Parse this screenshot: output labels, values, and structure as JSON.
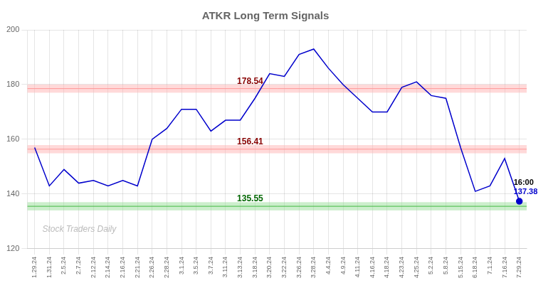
{
  "chart_data": {
    "type": "line",
    "title": "ATKR Long Term Signals",
    "categories": [
      "1.29.24",
      "1.31.24",
      "2.5.24",
      "2.7.24",
      "2.12.24",
      "2.14.24",
      "2.16.24",
      "2.21.24",
      "2.26.24",
      "2.28.24",
      "3.1.24",
      "3.5.24",
      "3.7.24",
      "3.11.24",
      "3.13.24",
      "3.18.24",
      "3.20.24",
      "3.22.24",
      "3.26.24",
      "3.28.24",
      "4.4.24",
      "4.9.24",
      "4.11.24",
      "4.16.24",
      "4.18.24",
      "4.23.24",
      "4.25.24",
      "5.2.24",
      "5.8.24",
      "5.15.24",
      "6.18.24",
      "7.1.24",
      "7.16.24",
      "7.29.24"
    ],
    "values": [
      157.0,
      143.0,
      149.0,
      144.0,
      145.0,
      143.0,
      145.0,
      143.0,
      160.0,
      164.0,
      171.0,
      171.0,
      163.0,
      167.0,
      167.0,
      175.0,
      184.0,
      183.0,
      191.0,
      193.0,
      186.0,
      180.0,
      175.0,
      170.0,
      170.0,
      179.0,
      181.0,
      176.0,
      175.0,
      157.0,
      141.0,
      143.0,
      153.0,
      137.38
    ],
    "color": "#0000cc",
    "ylim": [
      120,
      200
    ],
    "yticks": [
      120,
      140,
      160,
      180,
      200
    ],
    "grid": true,
    "hlines": [
      {
        "value": 178.54,
        "label": "178.54",
        "color": "#ff9999",
        "band_color": "#ffb3b3",
        "label_color": "#880000"
      },
      {
        "value": 156.41,
        "label": "156.41",
        "color": "#ff9999",
        "band_color": "#ffb3b3",
        "label_color": "#880000"
      },
      {
        "value": 135.55,
        "label": "135.55",
        "color": "#44bb44",
        "band_color": "#99dd99",
        "label_color": "#006600"
      }
    ],
    "annotations": [
      {
        "text": "16:00",
        "x": "7.29.24",
        "y": 137.38,
        "color": "#000000"
      },
      {
        "text": "137.38",
        "x": "7.29.24",
        "y": 137.38,
        "color": "#0000cc"
      },
      {
        "text": "Stock Traders Daily",
        "color": "#bbbbbb"
      }
    ]
  }
}
